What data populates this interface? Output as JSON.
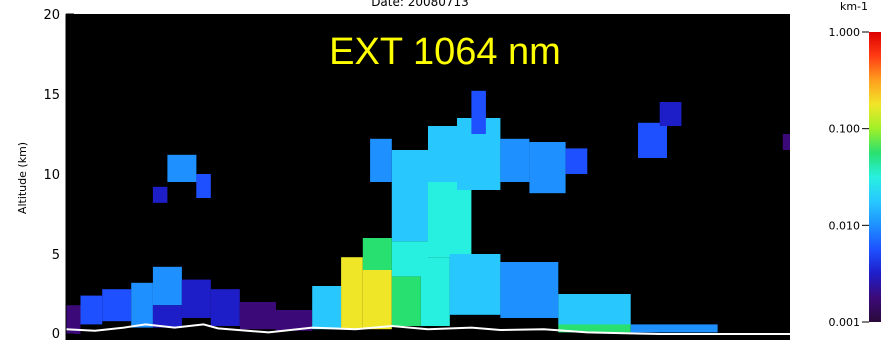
{
  "chart_data": {
    "type": "heatmap",
    "title": "Date: 20080713",
    "overlay_label": "EXT 1064 nm",
    "ylabel": "Altitude (km)",
    "ylim": [
      0,
      20
    ],
    "y_ticks": [
      "0",
      "5",
      "10",
      "15",
      "20"
    ],
    "grid": false,
    "colorbar": {
      "unit": "km-1",
      "scale": "log",
      "range": [
        0.001,
        1.0
      ],
      "ticks": [
        "1.000",
        "0.100",
        "0.010",
        "0.001"
      ],
      "colors": [
        "#2a0a3a",
        "#3c0a78",
        "#1e1ec8",
        "#1e50ff",
        "#1e90ff",
        "#28c8ff",
        "#28f0e0",
        "#28e070",
        "#a0f028",
        "#f0e628",
        "#ffa01e",
        "#ff3c14",
        "#dc0000"
      ]
    },
    "colors": {
      "background": "#000000",
      "surface": "#ffffff",
      "overlay_text": "#ffff00"
    },
    "ext_level_fraction_legend": "0 = 0.001 km-1 ... 1 = 1.000 km-1 (log scale)",
    "cells": [
      {
        "x0": 0.0,
        "x1": 0.02,
        "y0": 0.0,
        "y1": 1.8,
        "v": 0.12
      },
      {
        "x0": 0.02,
        "x1": 0.05,
        "y0": 0.6,
        "y1": 2.4,
        "v": 0.22
      },
      {
        "x0": 0.05,
        "x1": 0.09,
        "y0": 0.8,
        "y1": 2.8,
        "v": 0.28
      },
      {
        "x0": 0.09,
        "x1": 0.12,
        "y0": 0.4,
        "y1": 3.2,
        "v": 0.35
      },
      {
        "x0": 0.12,
        "x1": 0.16,
        "y0": 1.8,
        "y1": 4.2,
        "v": 0.3
      },
      {
        "x0": 0.12,
        "x1": 0.16,
        "y0": 0.4,
        "y1": 1.8,
        "v": 0.15
      },
      {
        "x0": 0.16,
        "x1": 0.2,
        "y0": 1.0,
        "y1": 3.4,
        "v": 0.18
      },
      {
        "x0": 0.2,
        "x1": 0.24,
        "y0": 0.5,
        "y1": 2.8,
        "v": 0.14
      },
      {
        "x0": 0.24,
        "x1": 0.29,
        "y0": 0.3,
        "y1": 2.0,
        "v": 0.12
      },
      {
        "x0": 0.29,
        "x1": 0.34,
        "y0": 0.2,
        "y1": 1.5,
        "v": 0.1
      },
      {
        "x0": 0.34,
        "x1": 0.38,
        "y0": 0.3,
        "y1": 3.0,
        "v": 0.38
      },
      {
        "x0": 0.38,
        "x1": 0.41,
        "y0": 0.3,
        "y1": 4.8,
        "v": 0.72
      },
      {
        "x0": 0.41,
        "x1": 0.45,
        "y0": 0.3,
        "y1": 4.0,
        "v": 0.78
      },
      {
        "x0": 0.45,
        "x1": 0.49,
        "y0": 0.5,
        "y1": 3.6,
        "v": 0.62
      },
      {
        "x0": 0.49,
        "x1": 0.53,
        "y0": 0.5,
        "y1": 4.8,
        "v": 0.48
      },
      {
        "x0": 0.41,
        "x1": 0.45,
        "y0": 4.0,
        "y1": 6.0,
        "v": 0.58
      },
      {
        "x0": 0.45,
        "x1": 0.5,
        "y0": 3.6,
        "y1": 5.8,
        "v": 0.52
      },
      {
        "x0": 0.5,
        "x1": 0.56,
        "y0": 4.8,
        "y1": 9.5,
        "v": 0.46
      },
      {
        "x0": 0.45,
        "x1": 0.5,
        "y0": 5.8,
        "y1": 11.5,
        "v": 0.4
      },
      {
        "x0": 0.42,
        "x1": 0.45,
        "y0": 9.5,
        "y1": 12.2,
        "v": 0.36
      },
      {
        "x0": 0.5,
        "x1": 0.54,
        "y0": 9.5,
        "y1": 13.0,
        "v": 0.42
      },
      {
        "x0": 0.54,
        "x1": 0.6,
        "y0": 9.0,
        "y1": 13.5,
        "v": 0.38
      },
      {
        "x0": 0.56,
        "x1": 0.58,
        "y0": 12.5,
        "y1": 15.2,
        "v": 0.25
      },
      {
        "x0": 0.6,
        "x1": 0.64,
        "y0": 9.5,
        "y1": 12.2,
        "v": 0.34
      },
      {
        "x0": 0.64,
        "x1": 0.69,
        "y0": 8.8,
        "y1": 12.0,
        "v": 0.3
      },
      {
        "x0": 0.69,
        "x1": 0.72,
        "y0": 10.0,
        "y1": 11.6,
        "v": 0.28
      },
      {
        "x0": 0.53,
        "x1": 0.6,
        "y0": 1.2,
        "y1": 5.0,
        "v": 0.4
      },
      {
        "x0": 0.6,
        "x1": 0.68,
        "y0": 1.0,
        "y1": 4.5,
        "v": 0.35
      },
      {
        "x0": 0.68,
        "x1": 0.78,
        "y0": 0.5,
        "y1": 2.5,
        "v": 0.38
      },
      {
        "x0": 0.68,
        "x1": 0.78,
        "y0": 0.1,
        "y1": 0.6,
        "v": 0.55
      },
      {
        "x0": 0.78,
        "x1": 0.9,
        "y0": 0.1,
        "y1": 0.6,
        "v": 0.3
      },
      {
        "x0": 0.14,
        "x1": 0.18,
        "y0": 9.5,
        "y1": 11.2,
        "v": 0.3
      },
      {
        "x0": 0.18,
        "x1": 0.2,
        "y0": 8.5,
        "y1": 10.0,
        "v": 0.22
      },
      {
        "x0": 0.12,
        "x1": 0.14,
        "y0": 8.2,
        "y1": 9.2,
        "v": 0.2
      },
      {
        "x0": 0.79,
        "x1": 0.83,
        "y0": 11.0,
        "y1": 13.2,
        "v": 0.25
      },
      {
        "x0": 0.82,
        "x1": 0.85,
        "y0": 13.0,
        "y1": 14.5,
        "v": 0.15
      },
      {
        "x0": 0.99,
        "x1": 1.0,
        "y0": 11.5,
        "y1": 12.5,
        "v": 0.12
      }
    ]
  }
}
